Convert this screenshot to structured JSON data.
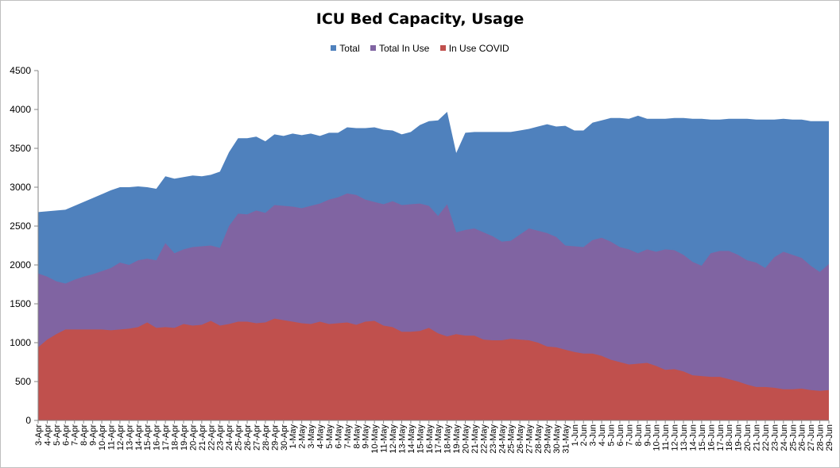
{
  "chart_data": {
    "type": "area",
    "title": "ICU Bed Capacity, Usage",
    "xlabel": "",
    "ylabel": "",
    "ylim": [
      0,
      4500
    ],
    "yticks": [
      0,
      500,
      1000,
      1500,
      2000,
      2500,
      3000,
      3500,
      4000,
      4500
    ],
    "grid": false,
    "legend": "top-center",
    "colors": {
      "Total": "#4f81bd",
      "Total In Use": "#8064a2",
      "In Use COVID": "#c0504d"
    },
    "categories": [
      "3-Apr",
      "4-Apr",
      "5-Apr",
      "6-Apr",
      "7-Apr",
      "8-Apr",
      "9-Apr",
      "10-Apr",
      "11-Apr",
      "12-Apr",
      "13-Apr",
      "14-Apr",
      "15-Apr",
      "16-Apr",
      "17-Apr",
      "18-Apr",
      "19-Apr",
      "20-Apr",
      "21-Apr",
      "22-Apr",
      "23-Apr",
      "24-Apr",
      "25-Apr",
      "26-Apr",
      "27-Apr",
      "28-Apr",
      "29-Apr",
      "30-Apr",
      "1-May",
      "2-May",
      "3-May",
      "4-May",
      "5-May",
      "6-May",
      "7-May",
      "8-May",
      "9-May",
      "10-May",
      "11-May",
      "12-May",
      "13-May",
      "14-May",
      "15-May",
      "16-May",
      "17-May",
      "18-May",
      "19-May",
      "20-May",
      "21-May",
      "22-May",
      "23-May",
      "24-May",
      "25-May",
      "26-May",
      "27-May",
      "28-May",
      "29-May",
      "30-May",
      "31-May",
      "1-Jun",
      "2-Jun",
      "3-Jun",
      "4-Jun",
      "5-Jun",
      "6-Jun",
      "7-Jun",
      "8-Jun",
      "9-Jun",
      "10-Jun",
      "11-Jun",
      "12-Jun",
      "13-Jun",
      "14-Jun",
      "15-Jun",
      "16-Jun",
      "17-Jun",
      "18-Jun",
      "19-Jun",
      "20-Jun",
      "21-Jun",
      "22-Jun",
      "23-Jun",
      "24-Jun",
      "25-Jun",
      "26-Jun",
      "27-Jun",
      "28-Jun",
      "29-Jun"
    ],
    "series": [
      {
        "name": "Total",
        "values": [
          2680,
          2690,
          2700,
          2710,
          2760,
          2810,
          2860,
          2910,
          2960,
          3000,
          3000,
          3010,
          3000,
          2980,
          3140,
          3110,
          3130,
          3150,
          3140,
          3160,
          3200,
          3450,
          3630,
          3630,
          3650,
          3590,
          3680,
          3660,
          3690,
          3670,
          3690,
          3660,
          3700,
          3700,
          3770,
          3760,
          3760,
          3770,
          3740,
          3730,
          3680,
          3710,
          3800,
          3850,
          3860,
          3970,
          3440,
          3700,
          3710,
          3710,
          3710,
          3710,
          3710,
          3730,
          3750,
          3780,
          3810,
          3780,
          3790,
          3730,
          3730,
          3830,
          3860,
          3890,
          3890,
          3880,
          3920,
          3880,
          3880,
          3880,
          3890,
          3890,
          3880,
          3880,
          3870,
          3870,
          3880,
          3880,
          3880,
          3870,
          3870,
          3870,
          3880,
          3870,
          3870,
          3850,
          3850,
          3850
        ]
      },
      {
        "name": "Total In Use",
        "values": [
          1890,
          1850,
          1790,
          1760,
          1810,
          1850,
          1880,
          1920,
          1960,
          2030,
          2000,
          2060,
          2080,
          2060,
          2280,
          2150,
          2200,
          2230,
          2240,
          2250,
          2220,
          2500,
          2660,
          2650,
          2700,
          2670,
          2770,
          2760,
          2750,
          2730,
          2760,
          2790,
          2840,
          2870,
          2920,
          2900,
          2840,
          2810,
          2780,
          2820,
          2770,
          2780,
          2790,
          2760,
          2630,
          2780,
          2420,
          2450,
          2470,
          2420,
          2370,
          2300,
          2310,
          2390,
          2470,
          2440,
          2410,
          2360,
          2250,
          2240,
          2230,
          2320,
          2350,
          2300,
          2230,
          2200,
          2150,
          2200,
          2170,
          2200,
          2190,
          2130,
          2040,
          1990,
          2150,
          2180,
          2180,
          2130,
          2060,
          2030,
          1960,
          2100,
          2170,
          2130,
          2090,
          1990,
          1910,
          2010
        ]
      },
      {
        "name": "In Use COVID",
        "values": [
          940,
          1040,
          1110,
          1170,
          1170,
          1170,
          1170,
          1170,
          1160,
          1170,
          1180,
          1200,
          1260,
          1190,
          1200,
          1190,
          1240,
          1220,
          1230,
          1280,
          1220,
          1240,
          1270,
          1270,
          1250,
          1260,
          1310,
          1290,
          1270,
          1250,
          1240,
          1270,
          1240,
          1250,
          1260,
          1230,
          1270,
          1280,
          1220,
          1200,
          1140,
          1140,
          1150,
          1190,
          1120,
          1080,
          1110,
          1090,
          1090,
          1040,
          1030,
          1030,
          1050,
          1040,
          1030,
          1000,
          950,
          940,
          910,
          880,
          860,
          860,
          830,
          780,
          750,
          720,
          730,
          740,
          700,
          650,
          660,
          630,
          580,
          570,
          560,
          560,
          530,
          500,
          460,
          430,
          430,
          420,
          400,
          400,
          410,
          390,
          380,
          390
        ]
      }
    ]
  }
}
